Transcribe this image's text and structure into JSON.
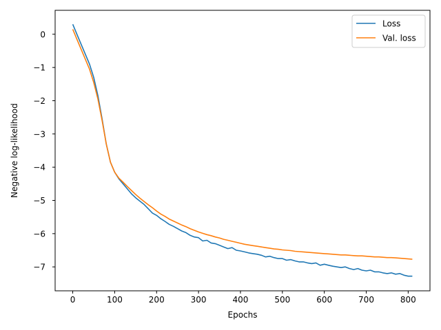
{
  "chart_data": {
    "type": "line",
    "title": "",
    "xlabel": "Epochs",
    "ylabel": "Negative log-likelihood",
    "xlim": [
      -42,
      852
    ],
    "ylim": [
      -7.72,
      0.72
    ],
    "xticks": [
      0,
      100,
      200,
      300,
      400,
      500,
      600,
      700,
      800
    ],
    "xtick_labels": [
      "0",
      "100",
      "200",
      "300",
      "400",
      "500",
      "600",
      "700",
      "800"
    ],
    "yticks": [
      0,
      -1,
      -2,
      -3,
      -4,
      -5,
      -6,
      -7
    ],
    "ytick_labels": [
      "0",
      "−1",
      "−2",
      "−3",
      "−4",
      "−5",
      "−6",
      "−7"
    ],
    "grid": false,
    "legend_position": "upper right",
    "series": [
      {
        "name": "Loss",
        "color": "#1f77b4",
        "x": [
          0,
          10,
          20,
          30,
          40,
          50,
          60,
          70,
          80,
          90,
          100,
          110,
          120,
          130,
          140,
          150,
          160,
          170,
          180,
          190,
          200,
          210,
          220,
          230,
          240,
          250,
          260,
          270,
          280,
          290,
          300,
          310,
          320,
          330,
          340,
          350,
          360,
          370,
          380,
          390,
          400,
          410,
          420,
          430,
          440,
          450,
          460,
          470,
          480,
          490,
          500,
          510,
          520,
          530,
          540,
          550,
          560,
          570,
          580,
          590,
          600,
          610,
          620,
          630,
          640,
          650,
          660,
          670,
          680,
          690,
          700,
          710,
          720,
          730,
          740,
          750,
          760,
          770,
          780,
          790,
          800,
          810
        ],
        "y": [
          0.3,
          0.0,
          -0.3,
          -0.6,
          -0.9,
          -1.3,
          -1.85,
          -2.55,
          -3.3,
          -3.85,
          -4.15,
          -4.35,
          -4.5,
          -4.65,
          -4.8,
          -4.92,
          -5.02,
          -5.12,
          -5.25,
          -5.38,
          -5.45,
          -5.55,
          -5.63,
          -5.72,
          -5.78,
          -5.85,
          -5.92,
          -5.97,
          -6.05,
          -6.1,
          -6.12,
          -6.22,
          -6.2,
          -6.28,
          -6.3,
          -6.35,
          -6.4,
          -6.45,
          -6.42,
          -6.5,
          -6.52,
          -6.55,
          -6.58,
          -6.6,
          -6.62,
          -6.65,
          -6.7,
          -6.68,
          -6.72,
          -6.75,
          -6.75,
          -6.8,
          -6.78,
          -6.82,
          -6.85,
          -6.85,
          -6.88,
          -6.9,
          -6.88,
          -6.95,
          -6.92,
          -6.95,
          -6.98,
          -7.0,
          -7.02,
          -7.0,
          -7.05,
          -7.08,
          -7.05,
          -7.1,
          -7.12,
          -7.1,
          -7.15,
          -7.15,
          -7.18,
          -7.2,
          -7.18,
          -7.22,
          -7.2,
          -7.25,
          -7.28,
          -7.28
        ]
      },
      {
        "name": "Val. loss",
        "color": "#ff7f0e",
        "x": [
          0,
          10,
          20,
          30,
          40,
          50,
          60,
          70,
          80,
          90,
          100,
          110,
          120,
          130,
          140,
          150,
          160,
          170,
          180,
          190,
          200,
          210,
          220,
          230,
          240,
          250,
          260,
          270,
          280,
          290,
          300,
          310,
          320,
          330,
          340,
          350,
          360,
          370,
          380,
          390,
          400,
          410,
          420,
          430,
          440,
          450,
          460,
          470,
          480,
          490,
          500,
          510,
          520,
          530,
          540,
          550,
          560,
          570,
          580,
          590,
          600,
          610,
          620,
          630,
          640,
          650,
          660,
          670,
          680,
          690,
          700,
          710,
          720,
          730,
          740,
          750,
          760,
          770,
          780,
          790,
          800,
          810
        ],
        "y": [
          0.15,
          -0.15,
          -0.45,
          -0.75,
          -1.05,
          -1.45,
          -1.95,
          -2.6,
          -3.3,
          -3.85,
          -4.15,
          -4.33,
          -4.45,
          -4.58,
          -4.7,
          -4.82,
          -4.93,
          -5.03,
          -5.13,
          -5.22,
          -5.32,
          -5.41,
          -5.48,
          -5.56,
          -5.62,
          -5.68,
          -5.74,
          -5.79,
          -5.85,
          -5.9,
          -5.95,
          -5.99,
          -6.03,
          -6.06,
          -6.1,
          -6.13,
          -6.17,
          -6.2,
          -6.23,
          -6.26,
          -6.29,
          -6.32,
          -6.34,
          -6.36,
          -6.38,
          -6.4,
          -6.42,
          -6.44,
          -6.46,
          -6.47,
          -6.49,
          -6.5,
          -6.51,
          -6.53,
          -6.54,
          -6.55,
          -6.56,
          -6.57,
          -6.58,
          -6.59,
          -6.6,
          -6.61,
          -6.62,
          -6.63,
          -6.64,
          -6.64,
          -6.65,
          -6.66,
          -6.67,
          -6.67,
          -6.68,
          -6.69,
          -6.7,
          -6.7,
          -6.71,
          -6.72,
          -6.72,
          -6.73,
          -6.74,
          -6.75,
          -6.76,
          -6.77
        ]
      }
    ]
  }
}
